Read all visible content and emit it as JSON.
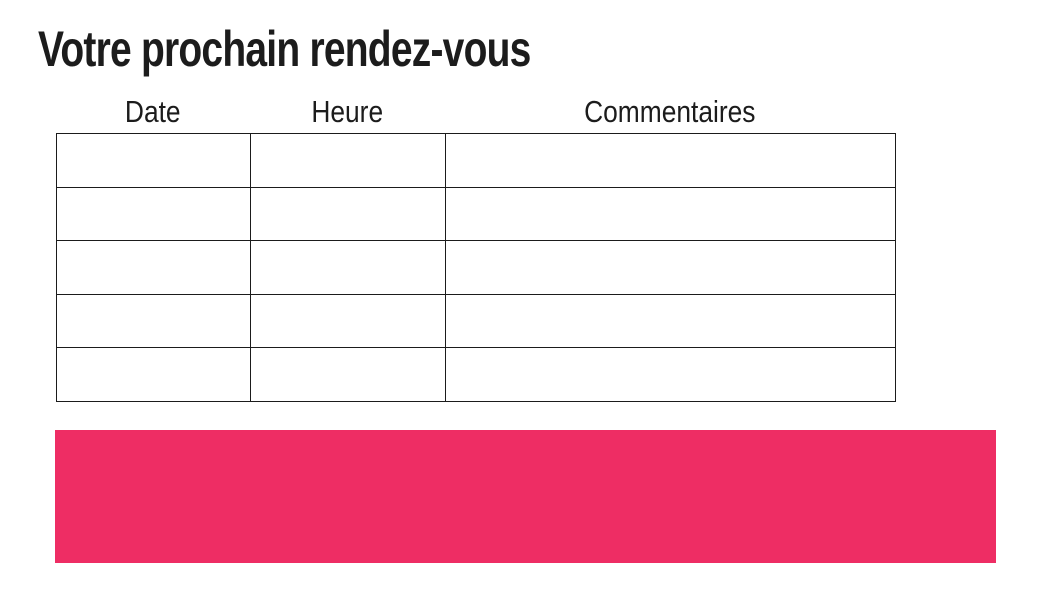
{
  "page": {
    "title": "Votre prochain rendez-vous"
  },
  "appointments_table": {
    "headers": [
      "Date",
      "Heure",
      "Commentaires"
    ],
    "rows": [
      [
        "",
        "",
        ""
      ],
      [
        "",
        "",
        ""
      ],
      [
        "",
        "",
        ""
      ],
      [
        "",
        "",
        ""
      ],
      [
        "",
        "",
        ""
      ]
    ]
  },
  "banner": {
    "color": "#EE2D64"
  },
  "colors": {
    "text": "#1C1C1C",
    "table_border": "#1B1B1B",
    "background": "#FFFFFF"
  }
}
